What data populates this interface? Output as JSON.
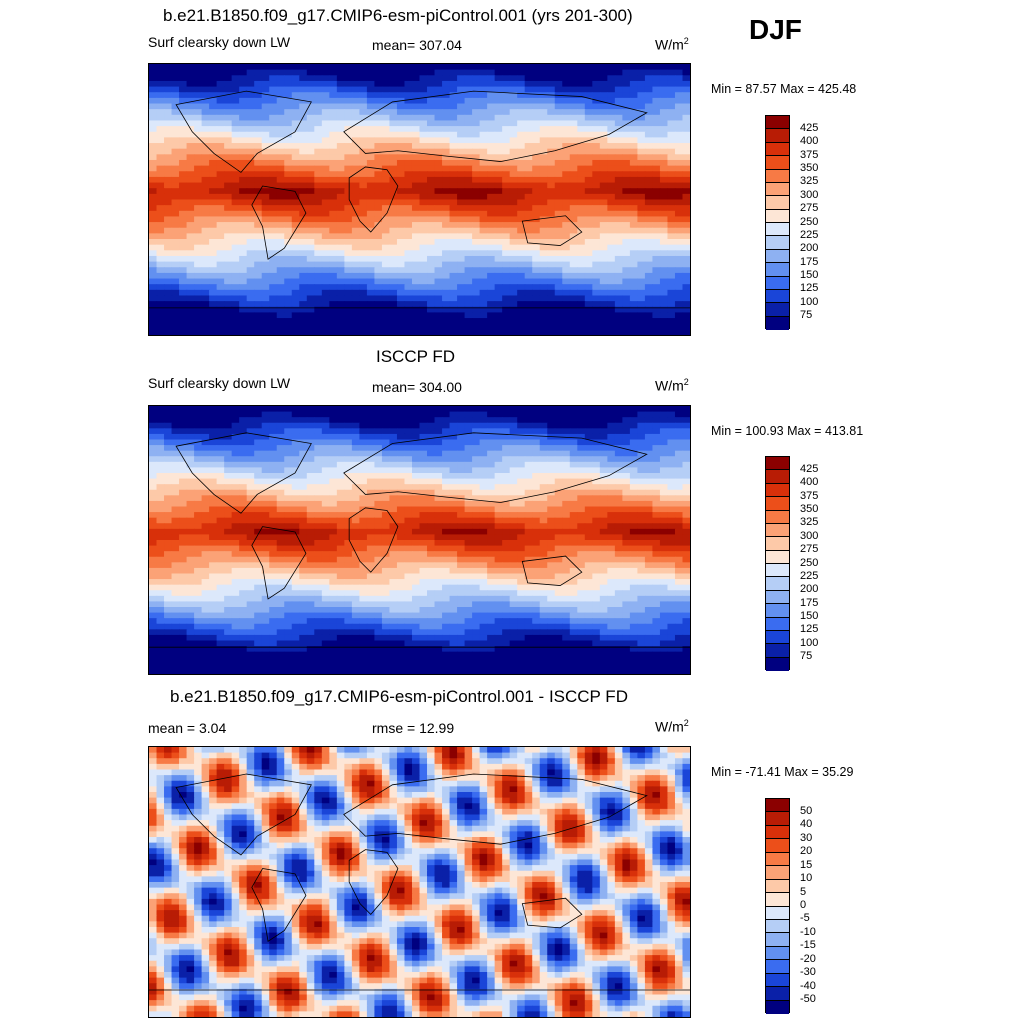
{
  "season": "DJF",
  "panels": [
    {
      "id": "model",
      "title": "b.e21.B1850.f09_g17.CMIP6-esm-piControl.001 (yrs 201-300)",
      "left_label": "Surf clearsky down LW",
      "center_label": "mean= 307.04",
      "units_base": "W/m",
      "units_exp": "2",
      "minmax": "Min =  87.57 Max = 425.48",
      "field": "absolute",
      "levels": [
        "425",
        "400",
        "375",
        "350",
        "325",
        "300",
        "275",
        "250",
        "225",
        "200",
        "175",
        "150",
        "125",
        "100",
        "75"
      ]
    },
    {
      "id": "obs",
      "title": "ISCCP FD",
      "left_label": "Surf clearsky down LW",
      "center_label": "mean= 304.00",
      "units_base": "W/m",
      "units_exp": "2",
      "minmax": "Min = 100.93 Max = 413.81",
      "field": "absolute",
      "levels": [
        "425",
        "400",
        "375",
        "350",
        "325",
        "300",
        "275",
        "250",
        "225",
        "200",
        "175",
        "150",
        "125",
        "100",
        "75"
      ]
    },
    {
      "id": "diff",
      "title": "b.e21.B1850.f09_g17.CMIP6-esm-piControl.001 - ISCCP FD",
      "left_label": "mean =   3.04",
      "center_label": "rmse =  12.99",
      "units_base": "W/m",
      "units_exp": "2",
      "minmax": "Min = -71.41 Max =  35.29",
      "field": "difference",
      "levels": [
        "50",
        "40",
        "30",
        "20",
        "15",
        "10",
        "5",
        "0",
        "-5",
        "-10",
        "-15",
        "-20",
        "-30",
        "-40",
        "-50"
      ]
    }
  ],
  "colormap": [
    "#8b0000",
    "#b81c05",
    "#d8300a",
    "#ec4f1a",
    "#f77a45",
    "#fba276",
    "#fdc9a8",
    "#fde6d6",
    "#dce8fb",
    "#b5cef6",
    "#8eb1f2",
    "#6290f0",
    "#3a6cf0",
    "#1a45d8",
    "#0a20a8",
    "#000080"
  ]
}
